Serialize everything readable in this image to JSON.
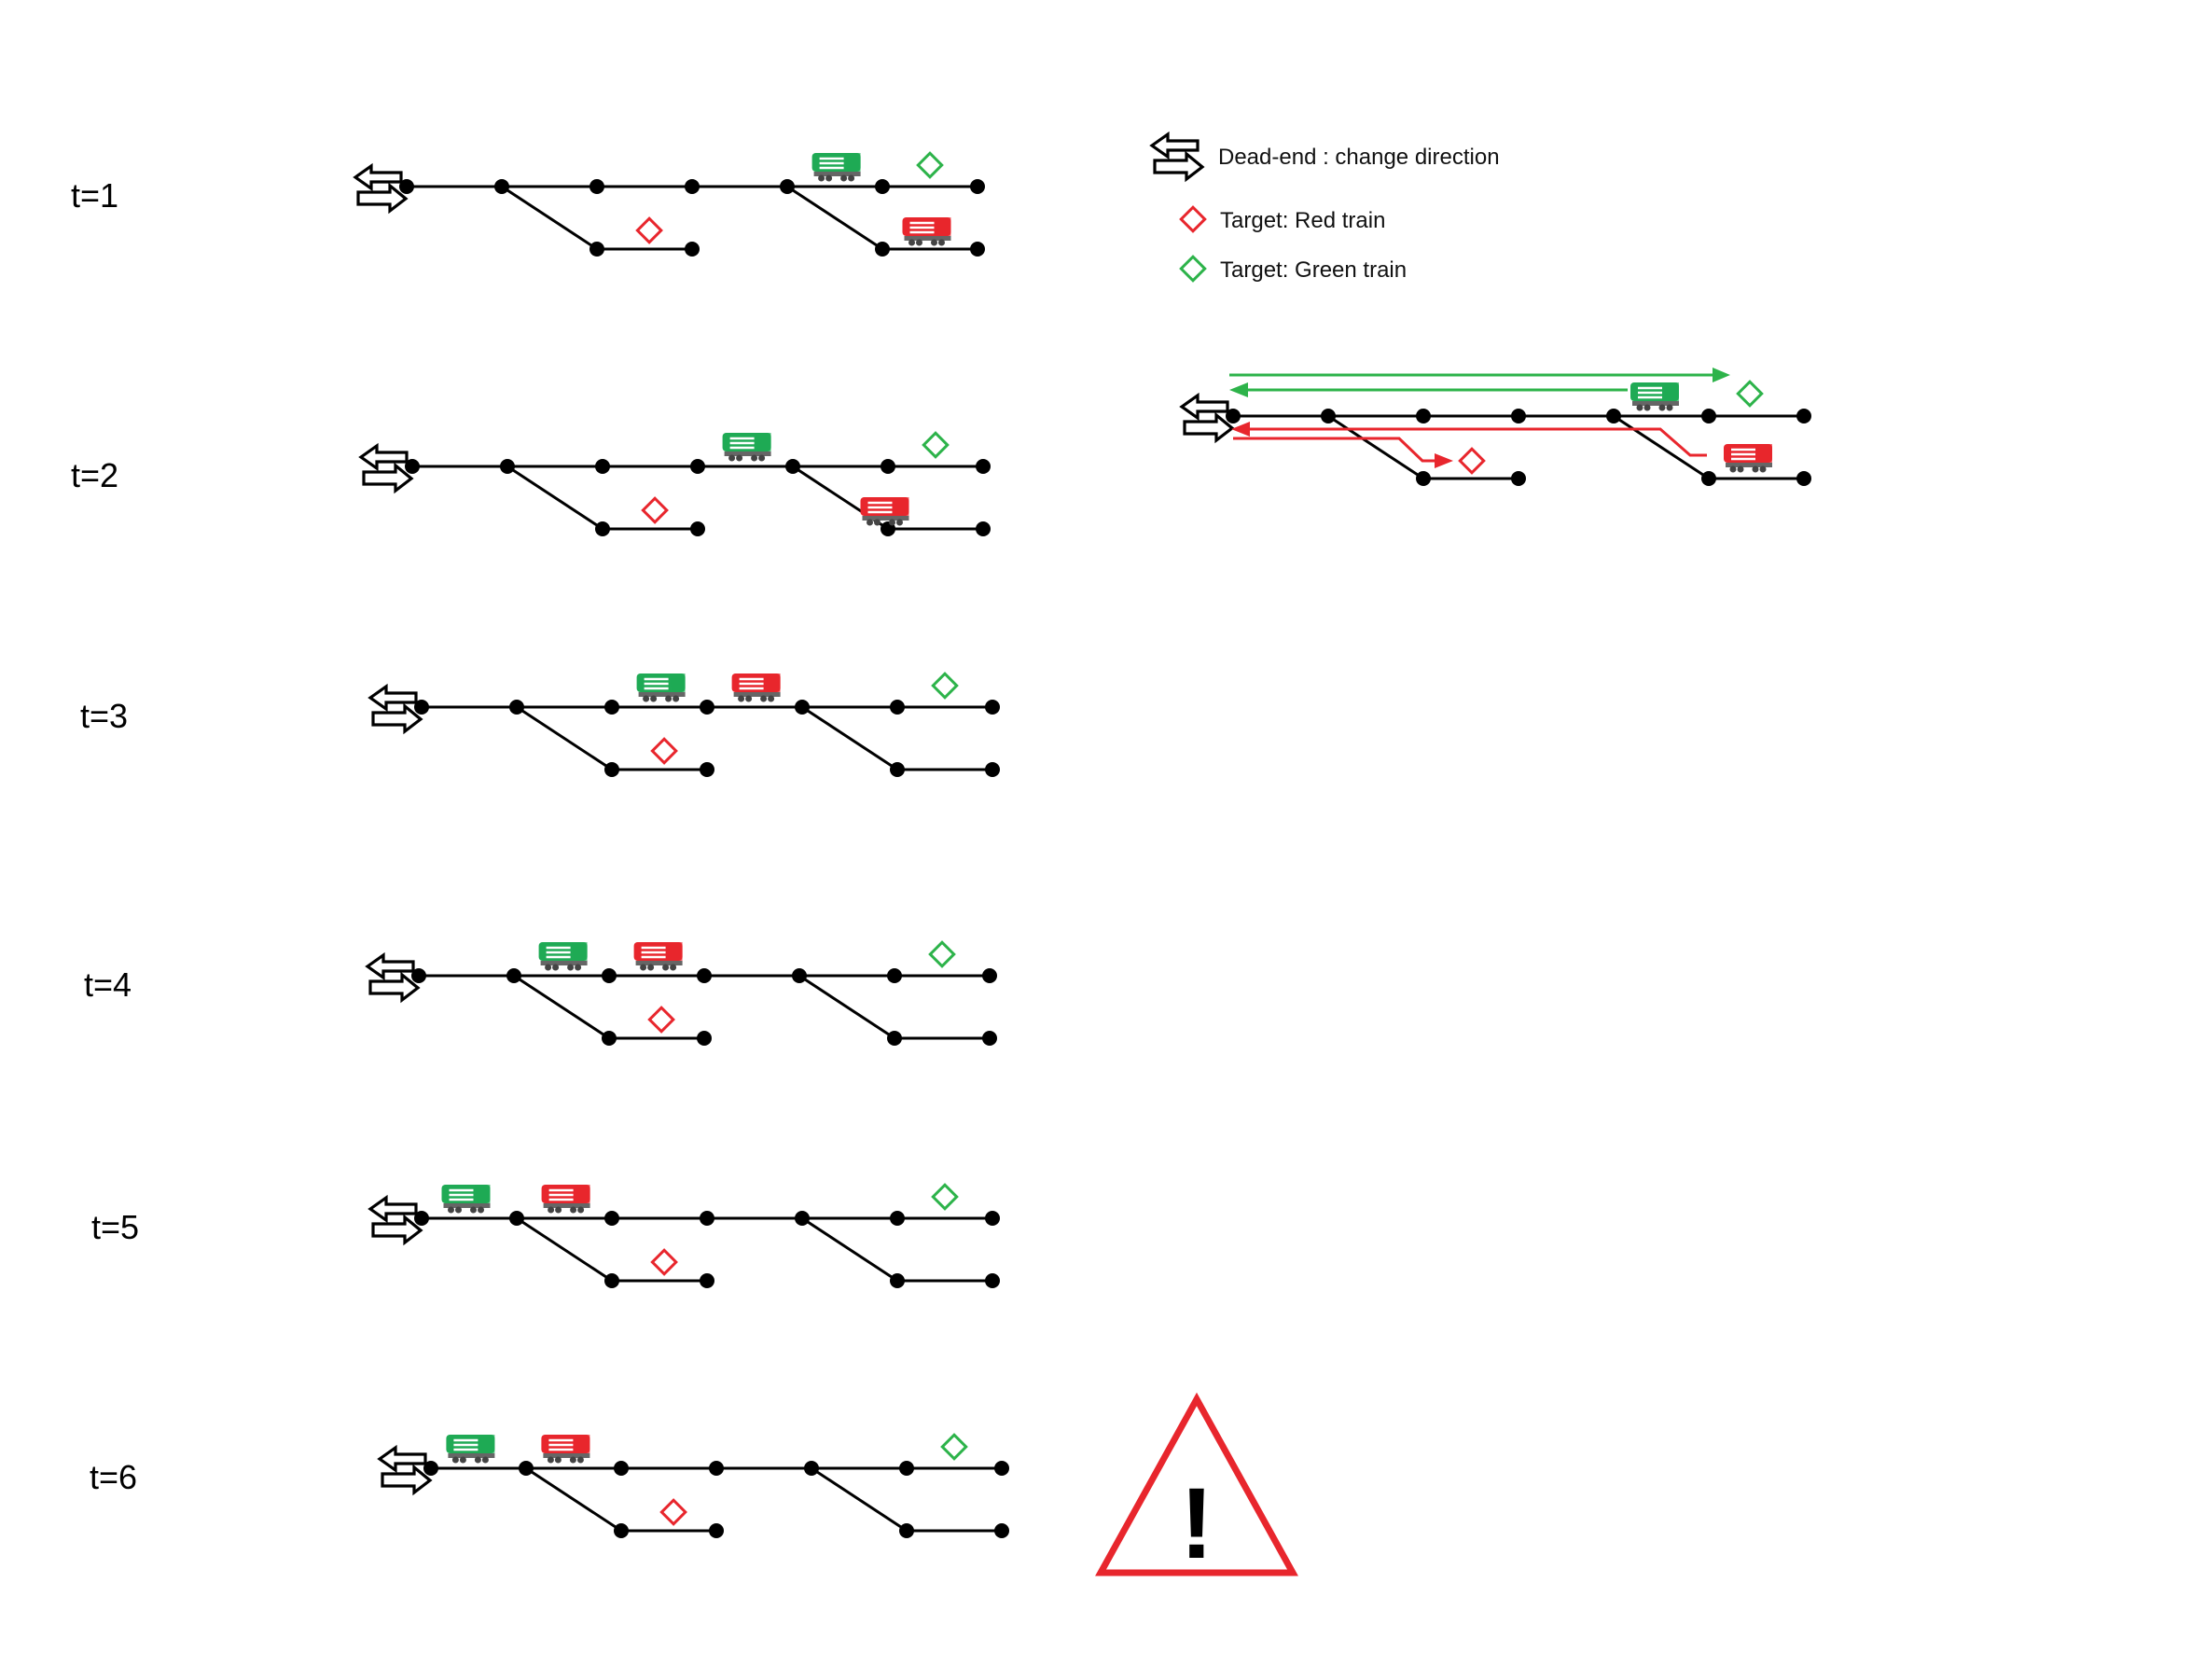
{
  "steps": [
    {
      "label": "t=1",
      "green_train": "green-train-icon",
      "red_train": "red-train-icon"
    },
    {
      "label": "t=2",
      "green_train": "green-train-icon",
      "red_train": "red-train-icon"
    },
    {
      "label": "t=3",
      "green_train": "green-train-icon",
      "red_train": "red-train-icon"
    },
    {
      "label": "t=4",
      "green_train": "green-train-icon",
      "red_train": "red-train-icon"
    },
    {
      "label": "t=5",
      "green_train": "green-train-icon",
      "red_train": "red-train-icon"
    },
    {
      "label": "t=6",
      "green_train": "green-train-icon",
      "red_train": "red-train-icon"
    }
  ],
  "legend": {
    "dead_end": {
      "icon": "double-arrow-icon",
      "text": "Dead-end : change direction"
    },
    "red_target": {
      "icon": "red-diamond-icon",
      "text": "Target: Red train"
    },
    "green_target": {
      "icon": "green-diamond-icon",
      "text": "Target: Green train"
    }
  },
  "routes": {
    "green_route": {
      "color": "#2db34a"
    },
    "red_route": {
      "color": "#e8262d"
    }
  },
  "warning": {
    "icon": "warning-triangle-icon",
    "symbol": "!"
  },
  "colors": {
    "green_train": "#1faa55",
    "red_train": "#e8262d",
    "track": "#000000",
    "warning": "#e8262d"
  }
}
